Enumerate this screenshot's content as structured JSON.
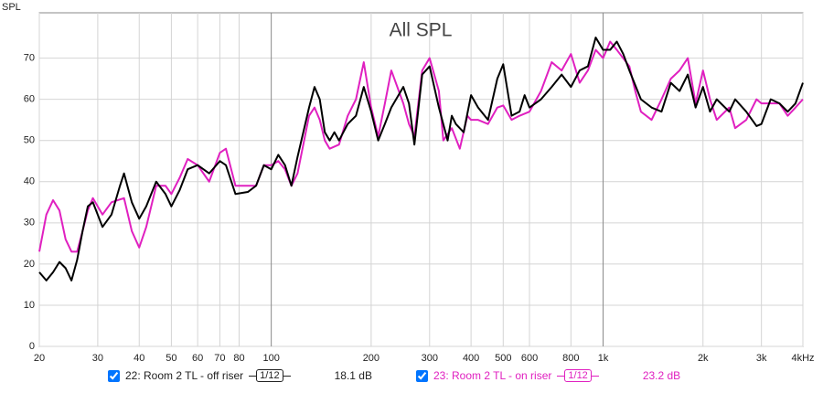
{
  "chart_data": {
    "type": "line",
    "title": "All SPL",
    "y_label": "SPL",
    "xscale": "log",
    "grid": true,
    "xlim": [
      20,
      4000
    ],
    "ylim": [
      0,
      81
    ],
    "yticks": [
      0,
      10,
      20,
      30,
      40,
      50,
      60,
      70
    ],
    "xticks": [
      20,
      30,
      40,
      50,
      60,
      70,
      80,
      100,
      200,
      300,
      400,
      500,
      600,
      800,
      {
        "value": 1000,
        "label": "1k"
      },
      {
        "value": 2000,
        "label": "2k"
      },
      {
        "value": 3000,
        "label": "3k"
      },
      {
        "value": 4000,
        "label": "4kHz"
      }
    ],
    "series": [
      {
        "name": "22: Room 2 TL - off riser",
        "color": "#000000",
        "smoothing": "1/12",
        "offset_label": "18.1 dB",
        "x": [
          20,
          21,
          22,
          23,
          24,
          25,
          26,
          27,
          28,
          29,
          31,
          33,
          35,
          36,
          38,
          40,
          42,
          45,
          48,
          50,
          53,
          56,
          60,
          65,
          70,
          73,
          78,
          85,
          90,
          95,
          100,
          105,
          110,
          115,
          120,
          130,
          135,
          140,
          145,
          150,
          155,
          160,
          170,
          180,
          190,
          200,
          210,
          220,
          230,
          250,
          260,
          270,
          285,
          300,
          320,
          340,
          350,
          360,
          380,
          400,
          420,
          450,
          480,
          500,
          530,
          560,
          580,
          600,
          650,
          700,
          750,
          800,
          850,
          900,
          950,
          1000,
          1050,
          1100,
          1150,
          1200,
          1300,
          1400,
          1500,
          1600,
          1700,
          1800,
          1900,
          2000,
          2100,
          2200,
          2400,
          2500,
          2700,
          2900,
          3000,
          3200,
          3400,
          3600,
          3800,
          4000
        ],
        "values": [
          18,
          16,
          18,
          20.5,
          19,
          16,
          21,
          28,
          34,
          35,
          29,
          32,
          39,
          42,
          35,
          31,
          34,
          40,
          37,
          34,
          38,
          43,
          44,
          42,
          45,
          44,
          37,
          37.5,
          39,
          44,
          43,
          46.5,
          44,
          39,
          46,
          58,
          63,
          60,
          52,
          50,
          52,
          50,
          54,
          56,
          63,
          57,
          50,
          54,
          58,
          63,
          59,
          49,
          66,
          68,
          58,
          50,
          56,
          54,
          52,
          61,
          58,
          55,
          65,
          68.5,
          56,
          57,
          61,
          58,
          60,
          63,
          66,
          63,
          67,
          68,
          75,
          72,
          72,
          74,
          71,
          67,
          60,
          58,
          57,
          64,
          62,
          66,
          58,
          63,
          57,
          60,
          57,
          60,
          57,
          53.5,
          54,
          60,
          59,
          57,
          59,
          64
        ]
      },
      {
        "name": "23: Room 2 TL - on riser",
        "color": "#e020c0",
        "smoothing": "1/12",
        "offset_label": "23.2 dB",
        "x": [
          20,
          21,
          22,
          23,
          24,
          25,
          26,
          27,
          28,
          29,
          31,
          33,
          36,
          38,
          40,
          42,
          45,
          48,
          50,
          53,
          56,
          60,
          65,
          70,
          73,
          78,
          85,
          90,
          95,
          100,
          105,
          110,
          115,
          120,
          130,
          135,
          140,
          145,
          150,
          160,
          170,
          180,
          190,
          200,
          210,
          220,
          230,
          250,
          260,
          270,
          285,
          300,
          320,
          330,
          350,
          370,
          390,
          400,
          420,
          450,
          480,
          500,
          530,
          560,
          600,
          650,
          700,
          750,
          800,
          850,
          900,
          950,
          1000,
          1050,
          1100,
          1200,
          1250,
          1300,
          1400,
          1500,
          1600,
          1700,
          1800,
          1900,
          2000,
          2100,
          2200,
          2400,
          2500,
          2700,
          2900,
          3000,
          3200,
          3400,
          3600,
          3800,
          4000
        ],
        "values": [
          23,
          32,
          35.5,
          33,
          26,
          23,
          23,
          28,
          33,
          36,
          32,
          35,
          36,
          28,
          24,
          29,
          39,
          39,
          37,
          41,
          45.5,
          44,
          40,
          47,
          48,
          39,
          39,
          39,
          44,
          44,
          45,
          43,
          39,
          42,
          56,
          58,
          55,
          50,
          48,
          49,
          56,
          60,
          69,
          58,
          51,
          59,
          67,
          59,
          54,
          51,
          67,
          70,
          62,
          50,
          53,
          48,
          56,
          55,
          55,
          54,
          58,
          58.5,
          55,
          56,
          57,
          62,
          69,
          67,
          71,
          64,
          67,
          72,
          70,
          74,
          72,
          68,
          62,
          57,
          55,
          60,
          65,
          67,
          70,
          59,
          67,
          60,
          55,
          58,
          53,
          55,
          60,
          59,
          59,
          59,
          56,
          58,
          60
        ]
      }
    ]
  }
}
